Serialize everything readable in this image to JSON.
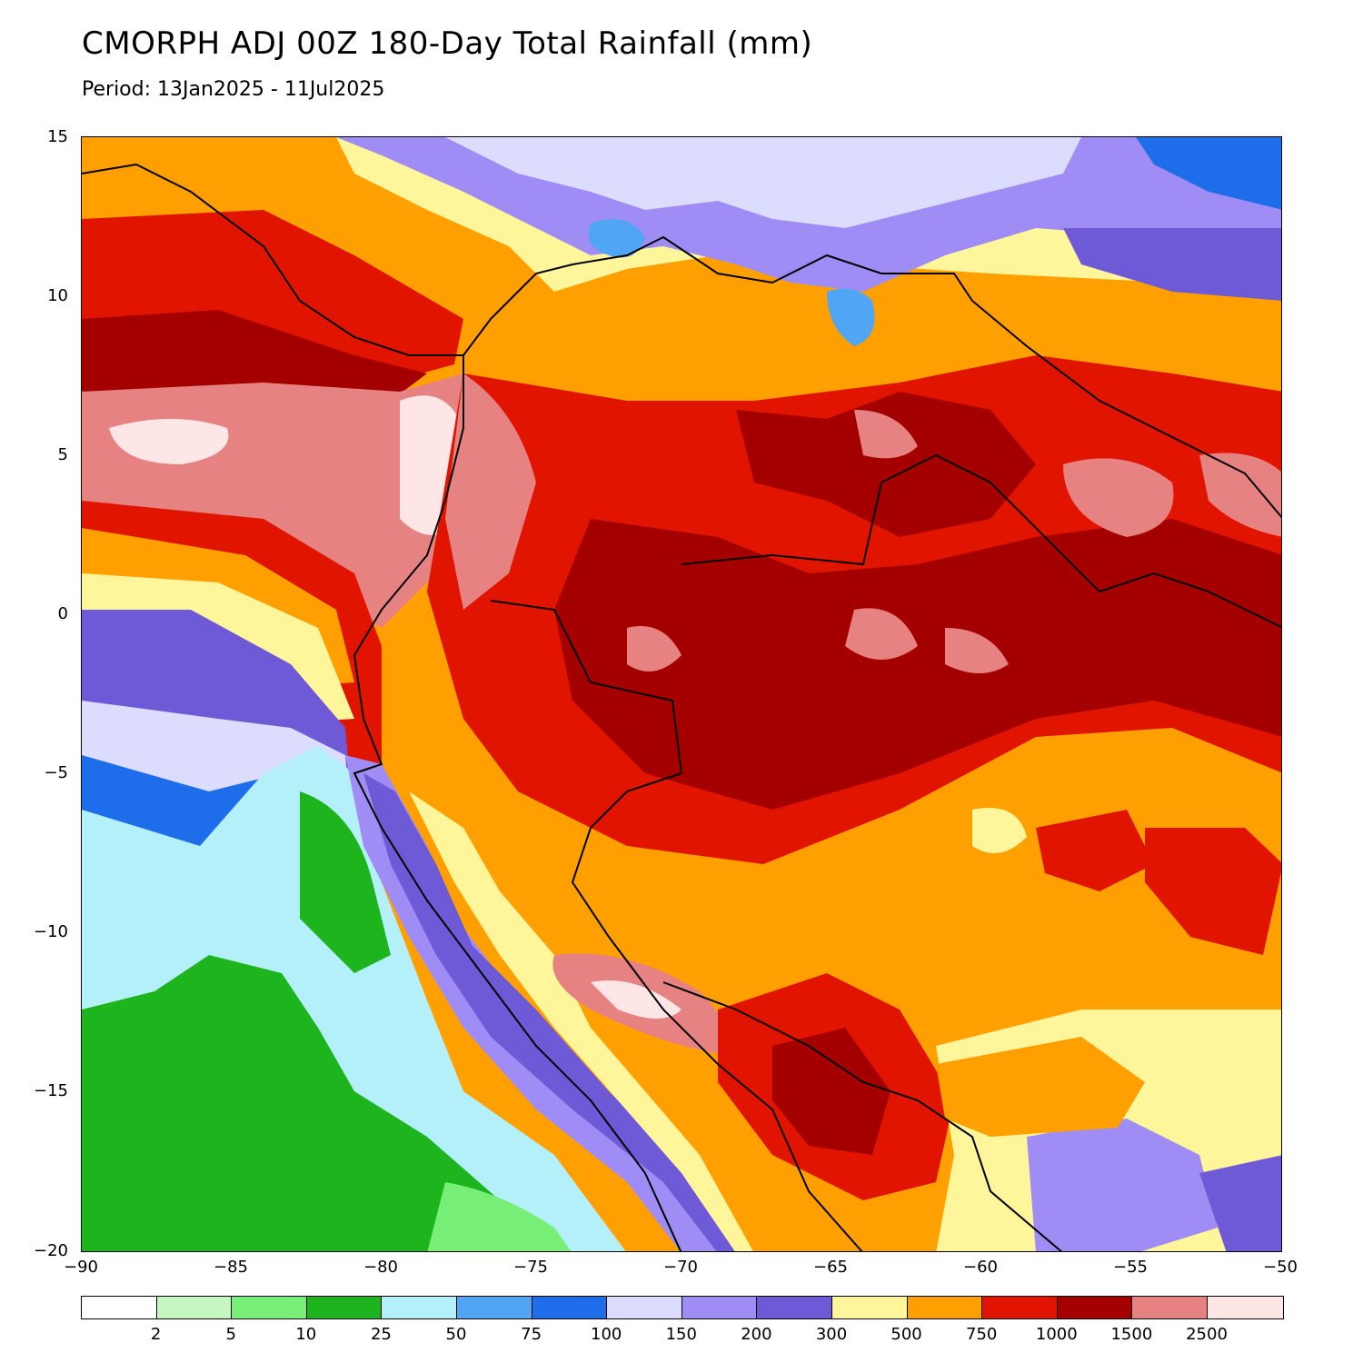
{
  "title": "CMORPH ADJ 00Z 180-Day Total Rainfall (mm)",
  "subtitle": "Period: 13Jan2025 - 11Jul2025",
  "map": {
    "lon_range": [
      -90,
      -50
    ],
    "lat_range": [
      -20,
      15
    ],
    "lat_ticks": [
      "15",
      "10",
      "5",
      "0",
      "−5",
      "−10",
      "−15",
      "−20"
    ],
    "lon_ticks": [
      "−90",
      "−85",
      "−80",
      "−75",
      "−70",
      "−65",
      "−60",
      "−55",
      "−50"
    ]
  },
  "legend": {
    "colors": [
      "#ffffff",
      "#c7f7c1",
      "#78f078",
      "#1eb41e",
      "#b4f0fa",
      "#50a5f5",
      "#1e6eeb",
      "#dcdcff",
      "#a08cf5",
      "#6e5ad7",
      "#fff59b",
      "#ffa000",
      "#e11400",
      "#a50000",
      "#e68282",
      "#ffe6e6"
    ],
    "labels": [
      "2",
      "5",
      "10",
      "25",
      "50",
      "75",
      "100",
      "150",
      "200",
      "300",
      "500",
      "750",
      "1000",
      "1500",
      "2500"
    ]
  }
}
